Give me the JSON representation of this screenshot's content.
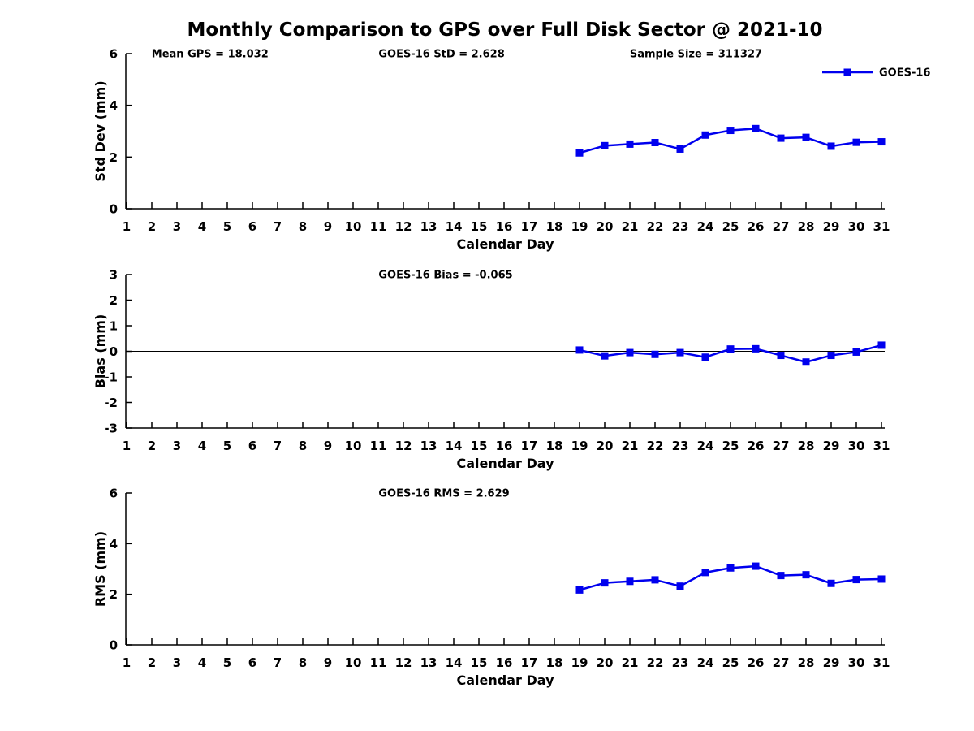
{
  "figure": {
    "title": "Monthly Comparison to GPS over Full Disk Sector @ 2021-10"
  },
  "colors": {
    "series": "#0000EE",
    "axis": "#000000",
    "text": "#000000"
  },
  "x_axis": {
    "label": "Calendar Day",
    "lim": [
      1,
      31
    ],
    "ticks": [
      1,
      2,
      3,
      4,
      5,
      6,
      7,
      8,
      9,
      10,
      11,
      12,
      13,
      14,
      15,
      16,
      17,
      18,
      19,
      20,
      21,
      22,
      23,
      24,
      25,
      26,
      27,
      28,
      29,
      30,
      31
    ]
  },
  "legend": {
    "label": "GOES-16",
    "position": "top-right"
  },
  "chart_data": [
    {
      "type": "line",
      "id": "std-dev",
      "ylabel": "Std Dev (mm)",
      "xlabel": "Calendar Day",
      "ylim": [
        0,
        6
      ],
      "yticks": [
        0,
        2,
        4,
        6
      ],
      "grid": false,
      "zero_line": false,
      "show_legend": true,
      "annotations": [
        {
          "text": "Mean GPS = 18.032",
          "xfrac": 0.034
        },
        {
          "text": "GOES-16 StD = 2.628",
          "xfrac": 0.333
        },
        {
          "text": "Sample Size = 311327",
          "xfrac": 0.664
        }
      ],
      "series": [
        {
          "name": "GOES-16",
          "x": [
            19,
            20,
            21,
            22,
            23,
            24,
            25,
            26,
            27,
            28,
            29,
            30,
            31
          ],
          "y": [
            2.16,
            2.44,
            2.5,
            2.56,
            2.31,
            2.85,
            3.03,
            3.1,
            2.73,
            2.76,
            2.42,
            2.57,
            2.59
          ]
        }
      ]
    },
    {
      "type": "line",
      "id": "bias",
      "ylabel": "Bias (mm)",
      "xlabel": "Calendar Day",
      "ylim": [
        -3,
        3
      ],
      "yticks": [
        -3,
        -2,
        -1,
        0,
        1,
        2,
        3
      ],
      "grid": false,
      "zero_line": true,
      "show_legend": false,
      "annotations": [
        {
          "text": "GOES-16 Bias = -0.065",
          "xfrac": 0.333
        }
      ],
      "series": [
        {
          "name": "GOES-16",
          "x": [
            19,
            20,
            21,
            22,
            23,
            24,
            25,
            26,
            27,
            28,
            29,
            30,
            31
          ],
          "y": [
            0.05,
            -0.18,
            -0.05,
            -0.12,
            -0.05,
            -0.23,
            0.09,
            0.1,
            -0.16,
            -0.42,
            -0.16,
            -0.03,
            0.24
          ]
        }
      ]
    },
    {
      "type": "line",
      "id": "rms",
      "ylabel": "RMS (mm)",
      "xlabel": "Calendar Day",
      "ylim": [
        0,
        6
      ],
      "yticks": [
        0,
        2,
        4,
        6
      ],
      "grid": false,
      "zero_line": false,
      "show_legend": false,
      "annotations": [
        {
          "text": "GOES-16 RMS = 2.629",
          "xfrac": 0.333
        }
      ],
      "series": [
        {
          "name": "GOES-16",
          "x": [
            19,
            20,
            21,
            22,
            23,
            24,
            25,
            26,
            27,
            28,
            29,
            30,
            31
          ],
          "y": [
            2.17,
            2.45,
            2.51,
            2.57,
            2.32,
            2.86,
            3.04,
            3.11,
            2.74,
            2.77,
            2.43,
            2.58,
            2.6
          ]
        }
      ]
    }
  ]
}
